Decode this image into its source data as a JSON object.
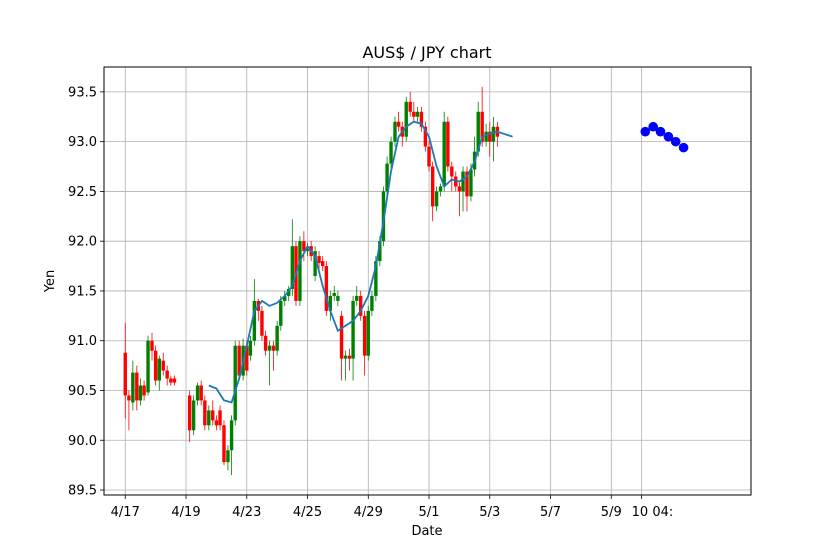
{
  "chart_data": {
    "type": "candlestick",
    "title": "AUS$ / JPY chart",
    "xlabel": "Date",
    "ylabel": "Yen",
    "grid": true,
    "xlim": [
      -0.7,
      20.6
    ],
    "ylim": [
      89.45,
      93.75
    ],
    "x_ticks": [
      {
        "x": 0,
        "label": "4/17"
      },
      {
        "x": 2,
        "label": "4/19"
      },
      {
        "x": 4,
        "label": "4/23"
      },
      {
        "x": 6,
        "label": "4/25"
      },
      {
        "x": 8,
        "label": "4/29"
      },
      {
        "x": 10,
        "label": "5/1"
      },
      {
        "x": 12,
        "label": "5/3"
      },
      {
        "x": 14,
        "label": "5/7"
      },
      {
        "x": 16,
        "label": "5/9"
      },
      {
        "x": 17,
        "label": "10 04:"
      }
    ],
    "y_ticks": [
      89.5,
      90.0,
      90.5,
      91.0,
      91.5,
      92.0,
      92.5,
      93.0,
      93.5
    ],
    "colors": {
      "up": "#008000",
      "down": "#ff0000",
      "moving_average": "#1f77b4",
      "forecast": "#0000ff"
    },
    "candles": [
      [
        0.0,
        90.88,
        90.45,
        91.18,
        90.22
      ],
      [
        0.12,
        90.45,
        90.4,
        90.5,
        90.1
      ],
      [
        0.25,
        90.38,
        90.68,
        90.8,
        90.3
      ],
      [
        0.38,
        90.68,
        90.4,
        90.75,
        90.3
      ],
      [
        0.5,
        90.4,
        90.55,
        90.62,
        90.35
      ],
      [
        0.62,
        90.55,
        90.45,
        90.6,
        90.4
      ],
      [
        0.75,
        90.48,
        91.0,
        91.05,
        90.45
      ],
      [
        0.88,
        91.0,
        90.9,
        91.08,
        90.8
      ],
      [
        1.0,
        90.9,
        90.6,
        90.95,
        90.55
      ],
      [
        1.12,
        90.6,
        90.82,
        90.85,
        90.5
      ],
      [
        1.25,
        90.8,
        90.7,
        90.88,
        90.65
      ],
      [
        1.38,
        90.7,
        90.62,
        90.75,
        90.55
      ],
      [
        1.5,
        90.62,
        90.58,
        90.65,
        90.55
      ],
      [
        1.62,
        90.62,
        90.58,
        90.65,
        90.55
      ],
      [
        2.12,
        90.45,
        90.1,
        90.5,
        89.98
      ],
      [
        2.25,
        90.1,
        90.4,
        90.45,
        90.05
      ],
      [
        2.38,
        90.4,
        90.55,
        90.58,
        90.35
      ],
      [
        2.5,
        90.55,
        90.4,
        90.6,
        90.35
      ],
      [
        2.62,
        90.4,
        90.15,
        90.45,
        90.1
      ],
      [
        2.75,
        90.15,
        90.3,
        90.35,
        90.1
      ],
      [
        2.88,
        90.3,
        90.2,
        90.4,
        90.15
      ],
      [
        3.0,
        90.2,
        90.15,
        90.25,
        90.1
      ],
      [
        3.12,
        90.3,
        90.15,
        90.35,
        90.1
      ],
      [
        3.25,
        90.15,
        89.78,
        90.2,
        89.75
      ],
      [
        3.38,
        89.78,
        89.9,
        89.95,
        89.7
      ],
      [
        3.5,
        89.9,
        90.2,
        90.25,
        89.65
      ],
      [
        3.62,
        90.2,
        90.95,
        91.0,
        90.15
      ],
      [
        3.75,
        90.95,
        90.65,
        91.0,
        90.6
      ],
      [
        3.88,
        90.65,
        90.95,
        91.02,
        90.6
      ],
      [
        4.0,
        90.95,
        90.7,
        91.0,
        90.65
      ],
      [
        4.12,
        90.85,
        91.0,
        91.05,
        90.8
      ],
      [
        4.25,
        91.0,
        91.4,
        91.62,
        90.95
      ],
      [
        4.38,
        91.4,
        91.3,
        91.42,
        91.2
      ],
      [
        4.5,
        91.3,
        91.05,
        91.35,
        91.0
      ],
      [
        4.62,
        91.05,
        90.9,
        91.1,
        90.85
      ],
      [
        4.75,
        90.9,
        90.95,
        91.0,
        90.55
      ],
      [
        4.88,
        90.95,
        90.9,
        91.0,
        90.7
      ],
      [
        5.0,
        90.9,
        91.15,
        91.2,
        90.85
      ],
      [
        5.12,
        91.15,
        91.4,
        91.45,
        91.1
      ],
      [
        5.25,
        91.4,
        91.45,
        91.5,
        91.35
      ],
      [
        5.38,
        91.45,
        91.52,
        91.55,
        91.4
      ],
      [
        5.5,
        91.52,
        91.95,
        92.22,
        91.45
      ],
      [
        5.62,
        91.95,
        91.4,
        92.0,
        91.35
      ],
      [
        5.75,
        91.4,
        92.0,
        92.05,
        91.35
      ],
      [
        5.88,
        92.0,
        91.9,
        92.1,
        91.8
      ],
      [
        6.0,
        91.9,
        91.92,
        91.98,
        91.85
      ],
      [
        6.12,
        91.95,
        91.85,
        92.0,
        91.8
      ],
      [
        6.25,
        91.65,
        91.9,
        91.95,
        91.6
      ],
      [
        6.38,
        91.85,
        91.78,
        91.9,
        91.7
      ],
      [
        6.5,
        91.8,
        91.75,
        91.85,
        91.7
      ],
      [
        6.62,
        91.75,
        91.3,
        91.8,
        91.25
      ],
      [
        6.75,
        91.3,
        91.45,
        91.5,
        91.2
      ],
      [
        6.88,
        91.45,
        91.48,
        91.55,
        91.4
      ],
      [
        7.0,
        91.4,
        91.45,
        91.5,
        91.35
      ],
      [
        7.12,
        91.25,
        90.82,
        91.3,
        90.6
      ],
      [
        7.25,
        90.82,
        90.85,
        90.9,
        90.6
      ],
      [
        7.38,
        90.85,
        90.82,
        90.92,
        90.7
      ],
      [
        7.5,
        90.82,
        91.4,
        91.45,
        90.6
      ],
      [
        7.62,
        91.4,
        91.45,
        91.55,
        91.35
      ],
      [
        7.75,
        91.45,
        91.25,
        91.5,
        91.2
      ],
      [
        7.88,
        91.25,
        90.85,
        91.3,
        90.65
      ],
      [
        8.0,
        90.85,
        91.3,
        91.35,
        90.8
      ],
      [
        8.12,
        91.3,
        91.45,
        91.5,
        91.25
      ],
      [
        8.25,
        91.45,
        91.8,
        91.85,
        91.4
      ],
      [
        8.38,
        91.8,
        92.0,
        92.05,
        91.75
      ],
      [
        8.5,
        92.0,
        92.5,
        92.55,
        91.95
      ],
      [
        8.62,
        92.5,
        92.78,
        92.85,
        92.4
      ],
      [
        8.75,
        92.78,
        93.0,
        93.05,
        92.7
      ],
      [
        8.88,
        93.0,
        93.2,
        93.25,
        92.95
      ],
      [
        9.0,
        93.2,
        93.15,
        93.3,
        93.1
      ],
      [
        9.12,
        93.15,
        93.05,
        93.2,
        92.95
      ],
      [
        9.25,
        93.05,
        93.4,
        93.45,
        93.0
      ],
      [
        9.38,
        93.4,
        93.3,
        93.5,
        93.25
      ],
      [
        9.5,
        93.3,
        93.25,
        93.4,
        93.2
      ],
      [
        9.62,
        93.25,
        93.3,
        93.35,
        93.2
      ],
      [
        9.75,
        93.3,
        93.15,
        93.35,
        93.1
      ],
      [
        9.88,
        93.15,
        92.95,
        93.2,
        92.9
      ],
      [
        10.0,
        92.95,
        92.75,
        93.0,
        92.7
      ],
      [
        10.12,
        92.75,
        92.35,
        92.8,
        92.2
      ],
      [
        10.25,
        92.35,
        92.5,
        92.55,
        92.3
      ],
      [
        10.38,
        92.5,
        92.55,
        92.58,
        92.45
      ],
      [
        10.5,
        92.55,
        93.2,
        93.3,
        92.5
      ],
      [
        10.62,
        93.2,
        92.75,
        93.25,
        92.7
      ],
      [
        10.75,
        92.75,
        92.65,
        92.8,
        92.5
      ],
      [
        10.88,
        92.65,
        92.55,
        92.7,
        92.5
      ],
      [
        11.0,
        92.55,
        92.5,
        92.6,
        92.25
      ],
      [
        11.12,
        92.5,
        92.7,
        92.75,
        92.3
      ],
      [
        11.25,
        92.7,
        92.45,
        92.75,
        92.3
      ],
      [
        11.38,
        92.45,
        92.72,
        92.78,
        92.4
      ],
      [
        11.5,
        92.72,
        92.9,
        93.05,
        92.65
      ],
      [
        11.62,
        92.9,
        93.3,
        93.4,
        92.85
      ],
      [
        11.75,
        93.3,
        93.0,
        93.55,
        92.95
      ],
      [
        11.88,
        93.0,
        93.1,
        93.18,
        92.95
      ],
      [
        12.0,
        93.1,
        93.0,
        93.2,
        92.85
      ],
      [
        12.12,
        93.0,
        93.15,
        93.25,
        92.8
      ],
      [
        12.25,
        93.15,
        93.05,
        93.2,
        92.95
      ]
    ],
    "moving_average": [
      [
        2.75,
        90.55
      ],
      [
        3.0,
        90.52
      ],
      [
        3.25,
        90.4
      ],
      [
        3.5,
        90.38
      ],
      [
        3.75,
        90.62
      ],
      [
        4.0,
        90.95
      ],
      [
        4.25,
        91.3
      ],
      [
        4.5,
        91.4
      ],
      [
        4.75,
        91.35
      ],
      [
        5.0,
        91.38
      ],
      [
        5.25,
        91.45
      ],
      [
        5.5,
        91.55
      ],
      [
        5.75,
        91.8
      ],
      [
        6.0,
        91.95
      ],
      [
        6.25,
        91.85
      ],
      [
        6.5,
        91.55
      ],
      [
        6.75,
        91.3
      ],
      [
        7.0,
        91.1
      ],
      [
        7.25,
        91.15
      ],
      [
        7.5,
        91.2
      ],
      [
        7.75,
        91.3
      ],
      [
        8.0,
        91.45
      ],
      [
        8.25,
        91.75
      ],
      [
        8.5,
        92.2
      ],
      [
        8.75,
        92.7
      ],
      [
        9.0,
        93.05
      ],
      [
        9.25,
        93.15
      ],
      [
        9.5,
        93.2
      ],
      [
        9.75,
        93.18
      ],
      [
        10.0,
        93.05
      ],
      [
        10.25,
        92.75
      ],
      [
        10.5,
        92.55
      ],
      [
        10.75,
        92.62
      ],
      [
        11.0,
        92.6
      ],
      [
        11.25,
        92.65
      ],
      [
        11.5,
        92.8
      ],
      [
        11.75,
        93.05
      ],
      [
        12.0,
        93.08
      ],
      [
        12.25,
        93.1
      ],
      [
        12.75,
        93.05
      ]
    ],
    "forecast": [
      [
        17.12,
        93.1
      ],
      [
        17.38,
        93.15
      ],
      [
        17.62,
        93.1
      ],
      [
        17.88,
        93.05
      ],
      [
        18.12,
        93.0
      ],
      [
        18.38,
        92.94
      ]
    ]
  }
}
